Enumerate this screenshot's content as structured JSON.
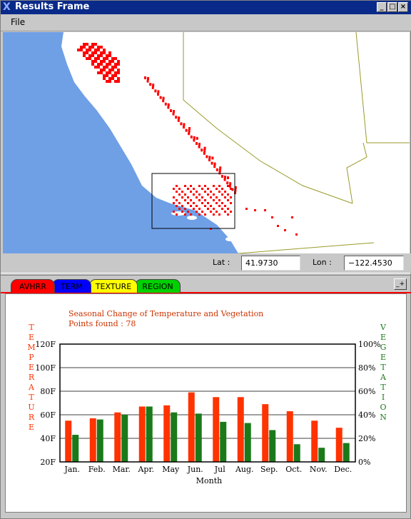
{
  "window": {
    "title": "Results Frame",
    "minimize_label": "_",
    "maximize_label": "□",
    "close_label": "×"
  },
  "menubar": {
    "file_label": "File"
  },
  "coordinates": {
    "lat_label": "Lat :",
    "lat_value": "41.9730",
    "lon_label": "Lon :",
    "lon_value": "−122.4530"
  },
  "tabs": [
    {
      "label": "AVHRR",
      "color": "#ff0000",
      "selected": true
    },
    {
      "label": "TERM",
      "color": "#0000ff",
      "selected": false
    },
    {
      "label": "TEXTURE",
      "color": "#ffff00",
      "selected": false
    },
    {
      "label": "REGION",
      "color": "#00d000",
      "selected": false
    }
  ],
  "corner_label": "_+",
  "colors": {
    "ocean": "#6fa0e6",
    "land": "#ffffff",
    "state_border": "#9a9a2a",
    "points": "#ff0000",
    "temperature": "#ff3300",
    "vegetation": "#1a7a1a",
    "title_text": "#cc3300"
  },
  "chart_data": {
    "type": "bar",
    "title": "Seasonal Change of Temperature and Vegetation",
    "subtitle": "Points found : 78",
    "xlabel": "Month",
    "ylabel_left": "TEMPERATURE",
    "ylabel_right": "VEGETATION",
    "categories": [
      "Jan.",
      "Feb.",
      "Mar.",
      "Apr.",
      "May",
      "Jun.",
      "Jul",
      "Aug.",
      "Sep.",
      "Oct.",
      "Nov.",
      "Dec."
    ],
    "left_ticks": [
      "20F",
      "40F",
      "60F",
      "80F",
      "100F",
      "120F"
    ],
    "right_ticks": [
      "0%",
      "20%",
      "40%",
      "60%",
      "80%",
      "100%"
    ],
    "left_ylim": [
      20,
      120
    ],
    "right_ylim": [
      0,
      100
    ],
    "grid": true,
    "series": [
      {
        "axis": "left",
        "values": [
          55,
          57,
          62,
          67,
          68,
          79,
          75,
          75,
          69,
          63,
          55,
          49
        ]
      },
      {
        "axis": "right",
        "values": [
          23,
          36,
          40,
          47,
          42,
          41,
          34,
          33,
          27,
          15,
          12,
          16
        ]
      }
    ]
  }
}
